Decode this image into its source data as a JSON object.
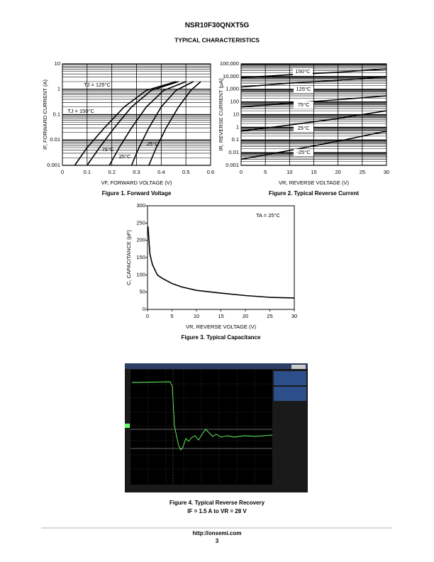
{
  "header": {
    "title": "NSR10F30QNXT5G",
    "section": "TYPICAL CHARACTERISTICS"
  },
  "chart_data": [
    {
      "type": "line",
      "title": "Figure 1. Forward Voltage",
      "x_label": "VF, FORWARD VOLTAGE (V)",
      "y_label": "IF, FORWARD CURRENT (A)",
      "xlim": [
        0,
        0.6
      ],
      "xticks": [
        0,
        0.1,
        0.2,
        0.3,
        0.4,
        0.5,
        0.6
      ],
      "ylim": [
        0.001,
        10
      ],
      "yticks": [
        0.001,
        0.01,
        0.1,
        1,
        10
      ],
      "ylog": true,
      "grid": true,
      "series": [
        {
          "name": "-25°C",
          "color": "#000000",
          "x": [
            0.35,
            0.38,
            0.42,
            0.47,
            0.52,
            0.56
          ],
          "values": [
            0.001,
            0.005,
            0.03,
            0.2,
            0.9,
            2
          ]
        },
        {
          "name": "25°C",
          "color": "#000000",
          "x": [
            0.28,
            0.31,
            0.35,
            0.4,
            0.46,
            0.53
          ],
          "values": [
            0.001,
            0.005,
            0.03,
            0.2,
            0.9,
            2
          ]
        },
        {
          "name": "75°C",
          "color": "#000000",
          "x": [
            0.19,
            0.23,
            0.28,
            0.34,
            0.41,
            0.5
          ],
          "values": [
            0.001,
            0.005,
            0.03,
            0.2,
            0.9,
            2
          ]
        },
        {
          "name": "TJ = 125°C",
          "color": "#000000",
          "x": [
            0.1,
            0.15,
            0.21,
            0.28,
            0.36,
            0.47
          ],
          "values": [
            0.001,
            0.005,
            0.03,
            0.2,
            0.9,
            2
          ]
        },
        {
          "name": "TJ = 150°C",
          "color": "#000000",
          "x": [
            0.05,
            0.1,
            0.17,
            0.25,
            0.34,
            0.46
          ],
          "values": [
            0.001,
            0.005,
            0.03,
            0.2,
            0.9,
            2
          ]
        }
      ]
    },
    {
      "type": "line",
      "title": "Figure 2. Typical Reverse Current",
      "x_label": "VR, REVERSE VOLTAGE (V)",
      "y_label": "IR, REVERSE CURRENT (µA)",
      "xlim": [
        0,
        30
      ],
      "xticks": [
        0,
        5,
        10,
        15,
        20,
        25,
        30
      ],
      "ylim": [
        0.001,
        100000
      ],
      "yticks": [
        0.001,
        0.01,
        0.1,
        1,
        10,
        100,
        {
          "value": 1000,
          "label": "1,000"
        },
        {
          "value": 10000,
          "label": "10,000"
        },
        {
          "value": 100000,
          "label": "100,000"
        }
      ],
      "ylog": true,
      "grid": true,
      "series": [
        {
          "name": "150°C",
          "color": "#000000",
          "x": [
            0,
            10,
            20,
            30
          ],
          "values": [
            8000,
            14000,
            22000,
            40000
          ]
        },
        {
          "name": "125°C",
          "color": "#000000",
          "x": [
            0,
            10,
            20,
            30
          ],
          "values": [
            1500,
            3000,
            5000,
            10000
          ]
        },
        {
          "name": "75°C",
          "color": "#000000",
          "x": [
            0,
            10,
            20,
            30
          ],
          "values": [
            40,
            80,
            150,
            300
          ]
        },
        {
          "name": "25°C",
          "color": "#000000",
          "x": [
            0,
            10,
            20,
            30
          ],
          "values": [
            0.5,
            1.5,
            5,
            20
          ]
        },
        {
          "name": "-25°C",
          "color": "#000000",
          "x": [
            0,
            10,
            20,
            30
          ],
          "values": [
            0.003,
            0.015,
            0.08,
            0.5
          ]
        }
      ]
    },
    {
      "type": "line",
      "title": "Figure 3. Typical Capacitance",
      "x_label": "VR, REVERSE VOLTAGE (V)",
      "y_label": "C, CAPACITANCE (pF)",
      "annotation": "TA = 25°C",
      "xlim": [
        0,
        30
      ],
      "xticks": [
        0,
        5,
        10,
        15,
        20,
        25,
        30
      ],
      "ylim": [
        0,
        300
      ],
      "yticks": [
        0,
        50,
        100,
        150,
        200,
        250,
        300
      ],
      "ylog": false,
      "grid": false,
      "series": [
        {
          "name": null,
          "color": "#000000",
          "x": [
            0.1,
            0.5,
            1,
            2,
            3,
            5,
            7,
            10,
            15,
            20,
            25,
            30
          ],
          "values": [
            240,
            160,
            130,
            100,
            90,
            75,
            65,
            55,
            47,
            40,
            35,
            33
          ]
        }
      ]
    }
  ],
  "figure4": {
    "caption": "Figure 4. Typical Reverse Recovery",
    "condition": "IF = 1.5 A to VR = 28 V"
  },
  "footer": {
    "url": "http://onsemi.com",
    "page": "3"
  }
}
